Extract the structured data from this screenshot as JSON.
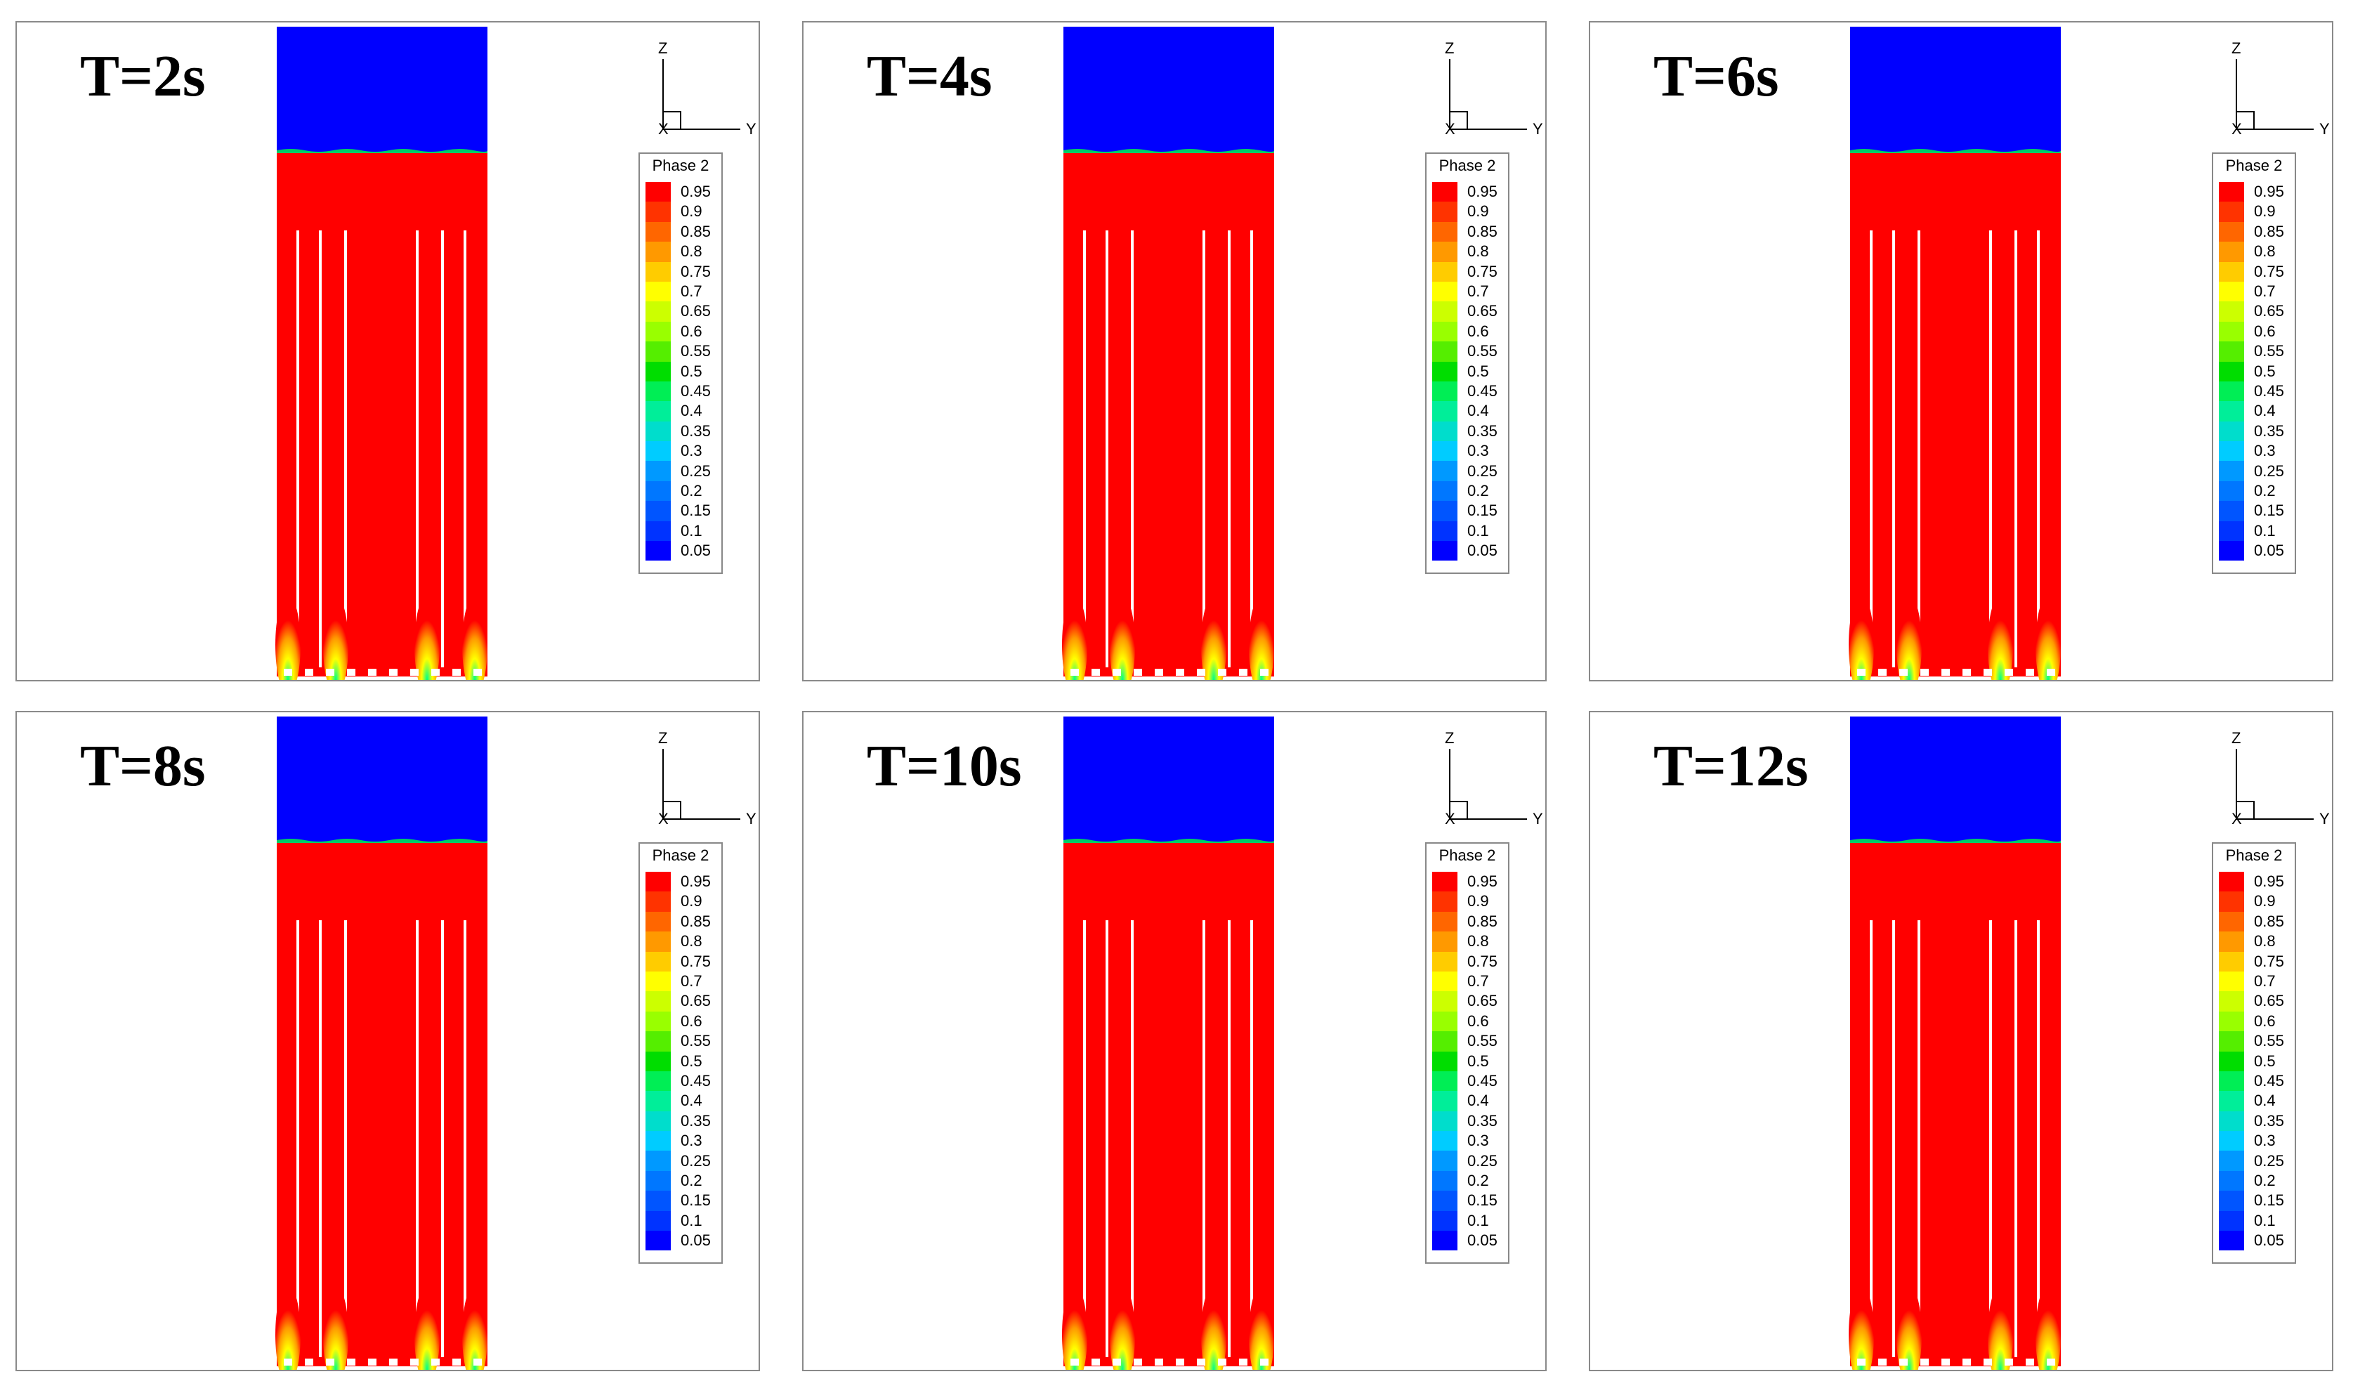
{
  "figure": {
    "panels": [
      {
        "title": "T=2s"
      },
      {
        "title": "T=4s"
      },
      {
        "title": "T=6s"
      },
      {
        "title": "T=8s"
      },
      {
        "title": "T=10s"
      },
      {
        "title": "T=12s"
      }
    ],
    "axis_labels": {
      "z": "Z",
      "y": "Y",
      "x": "X"
    },
    "legend": {
      "title": "Phase 2",
      "levels": [
        "0.95",
        "0.9",
        "0.85",
        "0.8",
        "0.75",
        "0.7",
        "0.65",
        "0.6",
        "0.55",
        "0.5",
        "0.45",
        "0.4",
        "0.35",
        "0.3",
        "0.25",
        "0.2",
        "0.15",
        "0.1",
        "0.05"
      ],
      "colors": [
        "#ff0000",
        "#ff3300",
        "#ff6600",
        "#ff9900",
        "#ffcc00",
        "#ffff00",
        "#ccff00",
        "#99ff00",
        "#55ee00",
        "#00dd00",
        "#00ee55",
        "#00ee99",
        "#00ddcc",
        "#00ccff",
        "#0099ff",
        "#0077ff",
        "#0055ff",
        "#0033ff",
        "#0000ff"
      ]
    },
    "field_colors": {
      "liquid": "#ff0000",
      "gas": "#0000ff",
      "interface": "#00cc66",
      "tube": "#ffffff",
      "plume": "#ffcc00"
    }
  }
}
